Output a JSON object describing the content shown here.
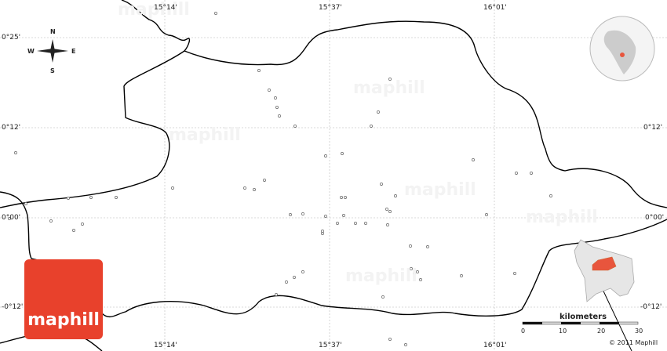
{
  "map": {
    "longitude_labels": [
      "15°14'",
      "15°37'",
      "16°01'"
    ],
    "latitude_labels": [
      "0°25'",
      "0°12'",
      "0°00'",
      "-0°12'"
    ],
    "watermark": "maphill",
    "logo": "maphill",
    "compass": {
      "n": "N",
      "s": "S",
      "e": "E",
      "w": "W"
    },
    "scale": {
      "unit": "kilometers",
      "ticks": [
        "0",
        "10",
        "20",
        "30"
      ]
    },
    "copyright": "© 2011 Maphill",
    "highlight_color": "#e8553d",
    "border_color": "#000000"
  }
}
